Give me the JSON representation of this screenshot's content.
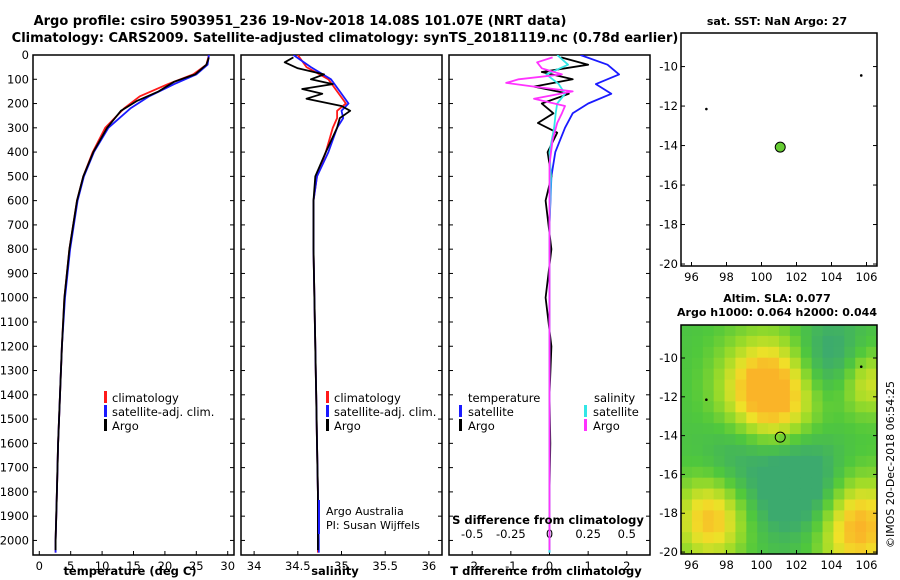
{
  "header": {
    "line1": "Argo profile: csiro 5903951_236 19-Nov-2018 14.08S 101.07E (NRT data)",
    "line2": "Climatology: CARS2009. Satellite-adjusted climatology: synTS_20181119.nc (0.78d earlier)"
  },
  "colors": {
    "climatology": "#ff1a1a",
    "satellite": "#1a1aff",
    "argo": "#000000",
    "satellite_s": "#33e6e6",
    "argo_s": "#ff33ff",
    "sst_marker": "#66cc33"
  },
  "chart_data": [
    {
      "type": "line",
      "id": "temperature",
      "xlabel": "temperature (deg C)",
      "xlim": [
        -1,
        31
      ],
      "ylim": [
        0,
        2060
      ],
      "xticks": [
        "0",
        "5",
        "10",
        "15",
        "20",
        "25",
        "30"
      ],
      "yticks": [
        "0",
        "100",
        "200",
        "300",
        "400",
        "500",
        "600",
        "700",
        "800",
        "900",
        "1000",
        "1100",
        "1200",
        "1300",
        "1400",
        "1500",
        "1600",
        "1700",
        "1800",
        "1900",
        "2000"
      ],
      "legend": [
        "climatology",
        "satellite-adj. clim.",
        "Argo"
      ],
      "series": [
        {
          "name": "climatology",
          "depth": [
            0,
            40,
            80,
            120,
            170,
            220,
            300,
            400,
            500,
            600,
            800,
            1000,
            1200,
            1400,
            1600,
            1800,
            2000,
            2050
          ],
          "values": [
            27,
            26.6,
            24.5,
            20.5,
            16,
            13.5,
            10.5,
            8.5,
            7,
            6,
            4.8,
            4,
            3.6,
            3.3,
            3,
            2.8,
            2.6,
            2.6
          ]
        },
        {
          "name": "satellite-adj. clim.",
          "depth": [
            0,
            40,
            80,
            120,
            170,
            220,
            300,
            400,
            500,
            600,
            800,
            1000,
            1200,
            1400,
            1600,
            1800,
            2000,
            2050
          ],
          "values": [
            27,
            26.8,
            25,
            21.5,
            17.5,
            14.5,
            11,
            8.7,
            7.1,
            6.1,
            4.9,
            4.1,
            3.6,
            3.3,
            3,
            2.8,
            2.6,
            2.6
          ]
        },
        {
          "name": "Argo",
          "depth": [
            10,
            40,
            80,
            110,
            150,
            190,
            230,
            300,
            400,
            500,
            600,
            800,
            1000,
            1200,
            1400,
            1600,
            1800,
            2000,
            2040
          ],
          "values": [
            27,
            26.6,
            24.8,
            21.5,
            19,
            15.5,
            13,
            10.8,
            8.6,
            7,
            6,
            4.8,
            4,
            3.6,
            3.3,
            3,
            2.8,
            2.6,
            2.6
          ]
        }
      ]
    },
    {
      "type": "line",
      "id": "salinity",
      "xlabel": "salinity",
      "xlim": [
        33.85,
        36.15
      ],
      "ylim": [
        0,
        2060
      ],
      "xticks": [
        "34",
        "34.5",
        "35",
        "35.5",
        "36"
      ],
      "legend": [
        "climatology",
        "satellite-adj. clim.",
        "Argo"
      ],
      "annotation": [
        "Argo Australia",
        "PI: Susan Wijffels"
      ],
      "series": [
        {
          "name": "climatology",
          "depth": [
            0,
            50,
            100,
            150,
            200,
            230,
            260,
            300,
            400,
            500,
            600,
            800,
            1000,
            1200,
            1400,
            1600,
            1800,
            2000,
            2050
          ],
          "values": [
            34.5,
            34.6,
            34.85,
            34.95,
            35.05,
            34.95,
            34.95,
            34.9,
            34.82,
            34.72,
            34.68,
            34.68,
            34.69,
            34.7,
            34.71,
            34.72,
            34.73,
            34.73,
            34.73
          ]
        },
        {
          "name": "satellite-adj. clim.",
          "depth": [
            0,
            50,
            100,
            150,
            200,
            230,
            260,
            300,
            400,
            500,
            600,
            800,
            1000,
            1200,
            1400,
            1600,
            1800,
            2000,
            2050
          ],
          "values": [
            34.45,
            34.65,
            34.88,
            34.98,
            35.08,
            35.0,
            35.02,
            34.95,
            34.85,
            34.72,
            34.68,
            34.68,
            34.69,
            34.7,
            34.71,
            34.72,
            34.73,
            34.74,
            34.74
          ]
        },
        {
          "name": "Argo",
          "depth": [
            10,
            30,
            55,
            80,
            100,
            120,
            140,
            160,
            180,
            210,
            230,
            260,
            300,
            400,
            500,
            600,
            800,
            1000,
            1200,
            1400,
            1600,
            1800,
            2000,
            2040
          ],
          "values": [
            34.45,
            34.35,
            34.5,
            34.8,
            34.65,
            34.9,
            34.55,
            34.78,
            34.6,
            35.0,
            35.1,
            34.98,
            34.95,
            34.82,
            34.7,
            34.68,
            34.68,
            34.69,
            34.7,
            34.71,
            34.72,
            34.73,
            34.73,
            34.73
          ]
        }
      ]
    },
    {
      "type": "line",
      "id": "difference",
      "xlabel": "T difference from climatology",
      "xlabel2": "S difference from climatology",
      "xlim": [
        -2.6,
        2.6
      ],
      "ylim": [
        0,
        2060
      ],
      "xticks": [
        "-2",
        "-1",
        "0",
        "1",
        "2"
      ],
      "s_ticks": [
        "-0.5",
        "-0.25",
        "0",
        "0.25",
        "0.5"
      ],
      "legend_t_title": "temperature",
      "legend_s_title": "salinity",
      "legend": [
        "satellite",
        "Argo",
        "satellite",
        "Argo"
      ],
      "series": [
        {
          "name": "T satellite",
          "depth": [
            0,
            40,
            80,
            120,
            160,
            200,
            240,
            300,
            400,
            500,
            700,
            1000,
            1400,
            1800,
            2050
          ],
          "values": [
            0.8,
            1.5,
            1.8,
            1.2,
            1.6,
            1.0,
            0.6,
            0.4,
            0.15,
            0.05,
            0,
            0,
            0,
            0,
            0
          ]
        },
        {
          "name": "T Argo",
          "depth": [
            10,
            40,
            70,
            100,
            130,
            160,
            200,
            240,
            280,
            320,
            400,
            500,
            600,
            800,
            1000,
            1200,
            1400,
            1600,
            1800,
            2000,
            2040
          ],
          "values": [
            0.3,
            1.0,
            -0.2,
            0.6,
            -0.4,
            0.5,
            -0.2,
            0.1,
            -0.3,
            0.2,
            -0.05,
            0.05,
            -0.1,
            0.05,
            -0.1,
            0.05,
            0,
            0.02,
            0,
            0,
            0
          ]
        },
        {
          "name": "S satellite",
          "depth": [
            0,
            40,
            80,
            120,
            160,
            200,
            240,
            300,
            400,
            500,
            700,
            1000,
            1400,
            1800,
            2050
          ],
          "values": [
            0.05,
            0.12,
            -0.02,
            0.06,
            0.1,
            0.05,
            0.04,
            0.03,
            0.0,
            0.01,
            0,
            0,
            0,
            0,
            0
          ]
        },
        {
          "name": "S Argo",
          "depth": [
            10,
            30,
            55,
            80,
            100,
            115,
            130,
            150,
            180,
            210,
            240,
            280,
            350,
            450,
            600,
            800,
            1000,
            1400,
            1800,
            2040
          ],
          "values": [
            0.02,
            -0.08,
            -0.05,
            0.08,
            -0.2,
            -0.28,
            -0.1,
            0.15,
            -0.1,
            0.1,
            0.08,
            0.05,
            0.02,
            0,
            0,
            0,
            0,
            0,
            0,
            0
          ]
        }
      ]
    },
    {
      "type": "scatter",
      "id": "sst_map",
      "title": "sat. SST: NaN Argo: 27",
      "xlim": [
        95.4,
        106.6
      ],
      "ylim": [
        -20.1,
        -8.3
      ],
      "xticks": [
        "96",
        "98",
        "100",
        "102",
        "104",
        "106"
      ],
      "yticks": [
        "-10",
        "-12",
        "-14",
        "-16",
        "-18",
        "-20"
      ],
      "points": [
        {
          "lon": 101.07,
          "lat": -14.08,
          "role": "profile"
        },
        {
          "lon": 105.7,
          "lat": -10.45,
          "role": "island"
        },
        {
          "lon": 96.85,
          "lat": -12.15,
          "role": "island"
        }
      ]
    },
    {
      "type": "heatmap",
      "id": "sla_map",
      "title": "Altim. SLA: 0.077",
      "subtitle": "Argo h1000: 0.064 h2000: 0.044",
      "xlim": [
        95.4,
        106.6
      ],
      "ylim": [
        -20.1,
        -8.3
      ],
      "xticks": [
        "96",
        "98",
        "100",
        "102",
        "104",
        "106"
      ],
      "yticks": [
        "-10",
        "-12",
        "-14",
        "-16",
        "-18",
        "-20"
      ],
      "points": [
        {
          "lon": 101.07,
          "lat": -14.08,
          "role": "profile"
        },
        {
          "lon": 105.7,
          "lat": -10.45,
          "role": "island"
        },
        {
          "lon": 96.85,
          "lat": -12.15,
          "role": "island"
        }
      ]
    }
  ],
  "footer": {
    "stamp": "©IMOS 20-Dec-2018 06:54:25"
  }
}
